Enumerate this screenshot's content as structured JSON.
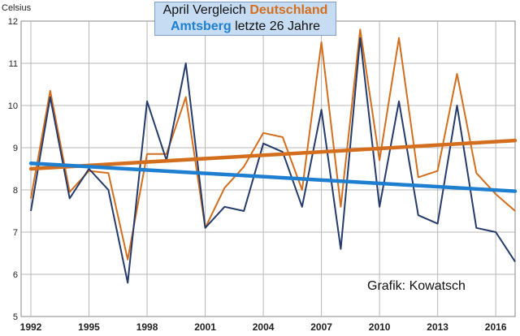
{
  "chart_data": {
    "type": "line",
    "title_line1_prefix": "April Vergleich ",
    "title_line1_highlight": "Deutschland",
    "title_line2_highlight": "Amtsberg",
    "title_line2_suffix": " letzte 26 Jahre",
    "ylabel": "Celsius",
    "ylim": [
      5,
      12
    ],
    "yticks": [
      5,
      6,
      7,
      8,
      9,
      10,
      11,
      12
    ],
    "xlim": [
      1992,
      2017
    ],
    "xticks": [
      1992,
      1995,
      1998,
      2001,
      2004,
      2007,
      2010,
      2013,
      2016
    ],
    "grid": true,
    "annotation": "Grafik: Kowatsch",
    "x": [
      1992,
      1993,
      1994,
      1995,
      1996,
      1997,
      1998,
      1999,
      2000,
      2001,
      2002,
      2003,
      2004,
      2005,
      2006,
      2007,
      2008,
      2009,
      2010,
      2011,
      2012,
      2013,
      2014,
      2015,
      2016,
      2017
    ],
    "series": [
      {
        "name": "Deutschland",
        "color": "#d36e1e",
        "values": [
          7.8,
          10.35,
          7.95,
          8.45,
          8.4,
          6.35,
          8.85,
          8.85,
          10.2,
          7.1,
          8.05,
          8.55,
          9.35,
          9.25,
          8.0,
          11.5,
          7.6,
          11.8,
          8.7,
          11.6,
          8.3,
          8.45,
          10.75,
          8.4,
          7.9,
          7.5
        ]
      },
      {
        "name": "Amtsberg",
        "color": "#243b6b",
        "values": [
          7.5,
          10.2,
          7.8,
          8.5,
          8.0,
          5.8,
          10.1,
          8.7,
          11.0,
          7.1,
          7.6,
          7.5,
          9.1,
          8.9,
          7.6,
          9.9,
          6.6,
          11.6,
          7.6,
          10.1,
          7.4,
          7.2,
          10.0,
          7.1,
          7.0,
          6.3
        ]
      }
    ],
    "trendlines": [
      {
        "series": "Deutschland",
        "color": "#d36e1e",
        "start": 8.5,
        "end": 9.17
      },
      {
        "series": "Amtsberg",
        "color": "#1e7fd0",
        "start": 8.63,
        "end": 7.97
      }
    ]
  }
}
